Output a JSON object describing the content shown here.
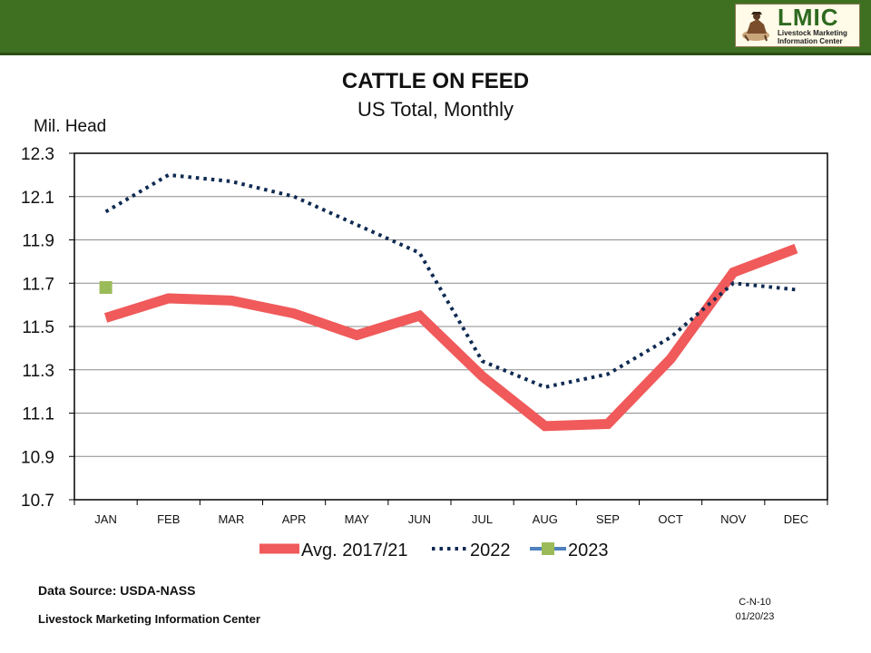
{
  "header": {
    "logo_title": "LMIC",
    "logo_subtitle_line1": "Livestock Marketing",
    "logo_subtitle_line2": "Information Center",
    "bar_color": "#3f7022"
  },
  "chart_data": {
    "type": "line",
    "title": "CATTLE ON FEED",
    "subtitle": "US Total, Monthly",
    "ylabel": "Mil. Head",
    "xlabel": "",
    "categories": [
      "JAN",
      "FEB",
      "MAR",
      "APR",
      "MAY",
      "JUN",
      "JUL",
      "AUG",
      "SEP",
      "OCT",
      "NOV",
      "DEC"
    ],
    "ylim": [
      10.7,
      12.3
    ],
    "yticks": [
      10.7,
      10.9,
      11.1,
      11.3,
      11.5,
      11.7,
      11.9,
      12.1,
      12.3
    ],
    "ytick_labels": [
      "10.7",
      "10.9",
      "11.1",
      "11.3",
      "11.5",
      "11.7",
      "11.9",
      "12.1",
      "12.3"
    ],
    "grid": true,
    "legend_position": "bottom",
    "series": [
      {
        "name": "Avg. 2017/21",
        "style": "solid-thick",
        "color": "#f05a5a",
        "values": [
          11.54,
          11.63,
          11.62,
          11.56,
          11.46,
          11.55,
          11.27,
          11.04,
          11.05,
          11.35,
          11.75,
          11.86
        ]
      },
      {
        "name": "2022",
        "style": "dotted",
        "color": "#0f2a52",
        "values": [
          12.03,
          12.2,
          12.17,
          12.1,
          11.97,
          11.84,
          11.34,
          11.22,
          11.28,
          11.45,
          11.7,
          11.67
        ]
      },
      {
        "name": "2023",
        "style": "marker",
        "color": "#9bbb59",
        "line_color": "#4f81bd",
        "values": [
          11.68,
          null,
          null,
          null,
          null,
          null,
          null,
          null,
          null,
          null,
          null,
          null
        ]
      }
    ]
  },
  "footer": {
    "source": "Data Source:  USDA-NASS",
    "center": "Livestock Marketing Information Center",
    "code": "C-N-10",
    "date": "01/20/23"
  }
}
